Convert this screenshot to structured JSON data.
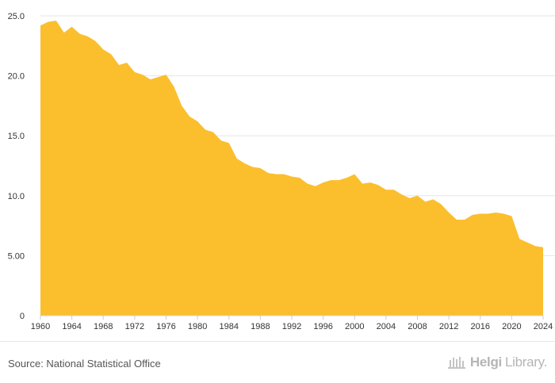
{
  "chart_data": {
    "type": "area",
    "title": "",
    "xlabel": "",
    "ylabel": "",
    "xlim": [
      1960,
      2024
    ],
    "ylim": [
      0,
      25
    ],
    "grid": true,
    "color": "#FBBF2E",
    "y_ticks": [
      {
        "value": 0,
        "label": "0"
      },
      {
        "value": 5,
        "label": "5.00"
      },
      {
        "value": 10,
        "label": "10.0"
      },
      {
        "value": 15,
        "label": "15.0"
      },
      {
        "value": 20,
        "label": "20.0"
      },
      {
        "value": 25,
        "label": "25.0"
      }
    ],
    "x_ticks": [
      1960,
      1964,
      1968,
      1972,
      1976,
      1980,
      1984,
      1988,
      1992,
      1996,
      2000,
      2004,
      2008,
      2012,
      2016,
      2020,
      2024
    ],
    "x": [
      1960,
      1961,
      1962,
      1963,
      1964,
      1965,
      1966,
      1967,
      1968,
      1969,
      1970,
      1971,
      1972,
      1973,
      1974,
      1975,
      1976,
      1977,
      1978,
      1979,
      1980,
      1981,
      1982,
      1983,
      1984,
      1985,
      1986,
      1987,
      1988,
      1989,
      1990,
      1991,
      1992,
      1993,
      1994,
      1995,
      1996,
      1997,
      1998,
      1999,
      2000,
      2001,
      2002,
      2003,
      2004,
      2005,
      2006,
      2007,
      2008,
      2009,
      2010,
      2011,
      2012,
      2013,
      2014,
      2015,
      2016,
      2017,
      2018,
      2019,
      2020,
      2021,
      2022,
      2023,
      2024
    ],
    "values": [
      24.2,
      24.5,
      24.6,
      23.6,
      24.1,
      23.5,
      23.3,
      22.9,
      22.2,
      21.8,
      20.9,
      21.1,
      20.3,
      20.1,
      19.7,
      19.9,
      20.1,
      19.1,
      17.5,
      16.6,
      16.2,
      15.5,
      15.3,
      14.6,
      14.4,
      13.1,
      12.7,
      12.4,
      12.3,
      11.9,
      11.8,
      11.8,
      11.6,
      11.5,
      11.0,
      10.8,
      11.1,
      11.3,
      11.3,
      11.5,
      11.8,
      11.0,
      11.1,
      10.9,
      10.5,
      10.5,
      10.1,
      9.8,
      10.0,
      9.5,
      9.7,
      9.3,
      8.6,
      8.0,
      8.0,
      8.4,
      8.5,
      8.5,
      8.6,
      8.5,
      8.3,
      6.4,
      6.1,
      5.8,
      5.7
    ]
  },
  "footer": {
    "source": "Source: National Statistical Office",
    "brand_name": "Helgi",
    "brand_suffix": "Library."
  }
}
